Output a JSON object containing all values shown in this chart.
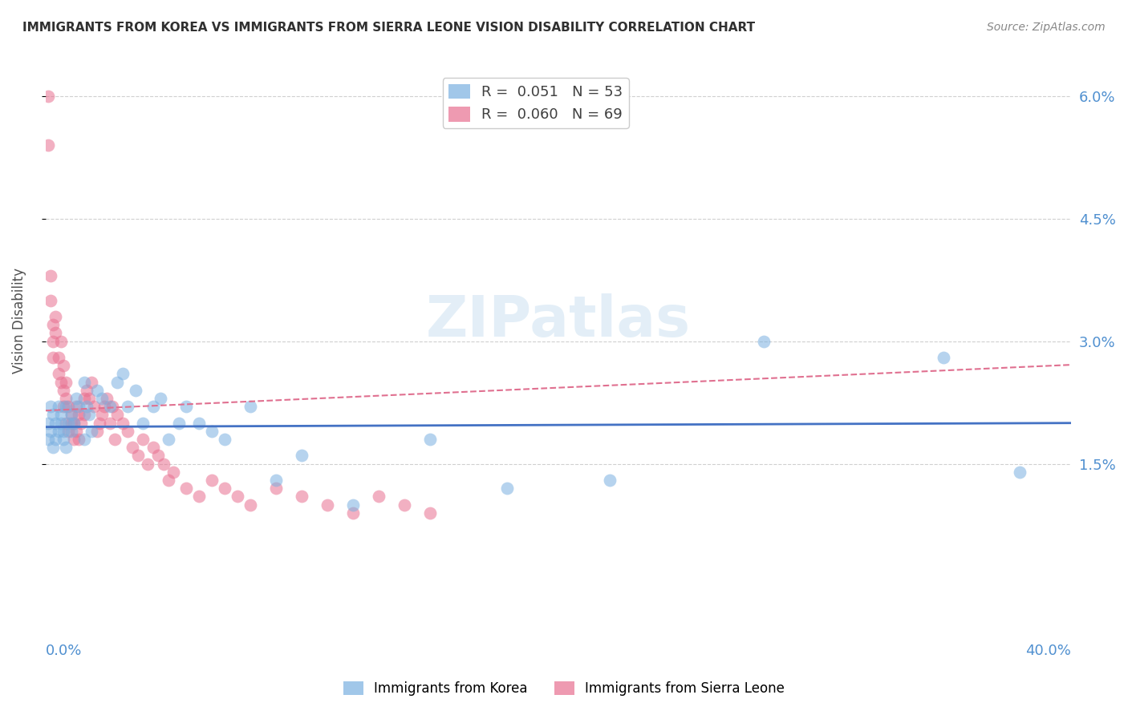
{
  "title": "IMMIGRANTS FROM KOREA VS IMMIGRANTS FROM SIERRA LEONE VISION DISABILITY CORRELATION CHART",
  "source": "Source: ZipAtlas.com",
  "ylabel": "Vision Disability",
  "ytick_labels": [
    "6.0%",
    "4.5%",
    "3.0%",
    "1.5%"
  ],
  "ytick_values": [
    0.06,
    0.045,
    0.03,
    0.015
  ],
  "xlim": [
    0.0,
    0.4
  ],
  "ylim": [
    0.0,
    0.065
  ],
  "watermark": "ZIPatlas",
  "legend_korea_R": "0.051",
  "legend_korea_N": "53",
  "legend_sl_R": "0.060",
  "legend_sl_N": "69",
  "korea_color": "#7ab0e0",
  "sierra_leone_color": "#e87090",
  "trend_korea_color": "#4472c4",
  "trend_sl_color": "#e07090",
  "background_color": "#ffffff",
  "grid_color": "#d0d0d0",
  "title_color": "#303030",
  "axis_label_color": "#5090d0",
  "korea_scatter_x": [
    0.001,
    0.001,
    0.002,
    0.002,
    0.003,
    0.003,
    0.004,
    0.004,
    0.005,
    0.005,
    0.006,
    0.006,
    0.007,
    0.007,
    0.008,
    0.008,
    0.009,
    0.01,
    0.01,
    0.011,
    0.012,
    0.013,
    0.015,
    0.015,
    0.016,
    0.017,
    0.018,
    0.02,
    0.022,
    0.025,
    0.028,
    0.03,
    0.032,
    0.035,
    0.038,
    0.042,
    0.045,
    0.048,
    0.052,
    0.055,
    0.06,
    0.065,
    0.07,
    0.08,
    0.09,
    0.1,
    0.12,
    0.15,
    0.18,
    0.22,
    0.28,
    0.35,
    0.38
  ],
  "korea_scatter_y": [
    0.02,
    0.018,
    0.022,
    0.019,
    0.021,
    0.017,
    0.02,
    0.018,
    0.019,
    0.022,
    0.021,
    0.02,
    0.019,
    0.018,
    0.022,
    0.017,
    0.02,
    0.019,
    0.021,
    0.02,
    0.023,
    0.022,
    0.025,
    0.018,
    0.022,
    0.021,
    0.019,
    0.024,
    0.023,
    0.022,
    0.025,
    0.026,
    0.022,
    0.024,
    0.02,
    0.022,
    0.023,
    0.018,
    0.02,
    0.022,
    0.02,
    0.019,
    0.018,
    0.022,
    0.013,
    0.016,
    0.01,
    0.018,
    0.012,
    0.013,
    0.03,
    0.028,
    0.014
  ],
  "sl_scatter_x": [
    0.001,
    0.001,
    0.002,
    0.002,
    0.003,
    0.003,
    0.003,
    0.004,
    0.004,
    0.005,
    0.005,
    0.006,
    0.006,
    0.007,
    0.007,
    0.007,
    0.008,
    0.008,
    0.008,
    0.009,
    0.009,
    0.01,
    0.01,
    0.011,
    0.011,
    0.012,
    0.012,
    0.013,
    0.013,
    0.014,
    0.015,
    0.015,
    0.016,
    0.017,
    0.018,
    0.019,
    0.02,
    0.021,
    0.022,
    0.023,
    0.024,
    0.025,
    0.026,
    0.027,
    0.028,
    0.03,
    0.032,
    0.034,
    0.036,
    0.038,
    0.04,
    0.042,
    0.044,
    0.046,
    0.048,
    0.05,
    0.055,
    0.06,
    0.065,
    0.07,
    0.075,
    0.08,
    0.09,
    0.1,
    0.11,
    0.12,
    0.13,
    0.14,
    0.15
  ],
  "sl_scatter_y": [
    0.06,
    0.054,
    0.035,
    0.038,
    0.032,
    0.03,
    0.028,
    0.033,
    0.031,
    0.028,
    0.026,
    0.025,
    0.03,
    0.024,
    0.027,
    0.022,
    0.025,
    0.02,
    0.023,
    0.022,
    0.019,
    0.021,
    0.02,
    0.02,
    0.018,
    0.022,
    0.019,
    0.021,
    0.018,
    0.02,
    0.023,
    0.021,
    0.024,
    0.023,
    0.025,
    0.022,
    0.019,
    0.02,
    0.021,
    0.022,
    0.023,
    0.02,
    0.022,
    0.018,
    0.021,
    0.02,
    0.019,
    0.017,
    0.016,
    0.018,
    0.015,
    0.017,
    0.016,
    0.015,
    0.013,
    0.014,
    0.012,
    0.011,
    0.013,
    0.012,
    0.011,
    0.01,
    0.012,
    0.011,
    0.01,
    0.009,
    0.011,
    0.01,
    0.009
  ],
  "k_trend_slope": 0.0012,
  "k_trend_intercept": 0.0195,
  "sl_trend_slope": 0.014,
  "sl_trend_intercept": 0.0215,
  "bottom_legend_korea": "Immigrants from Korea",
  "bottom_legend_sl": "Immigrants from Sierra Leone"
}
